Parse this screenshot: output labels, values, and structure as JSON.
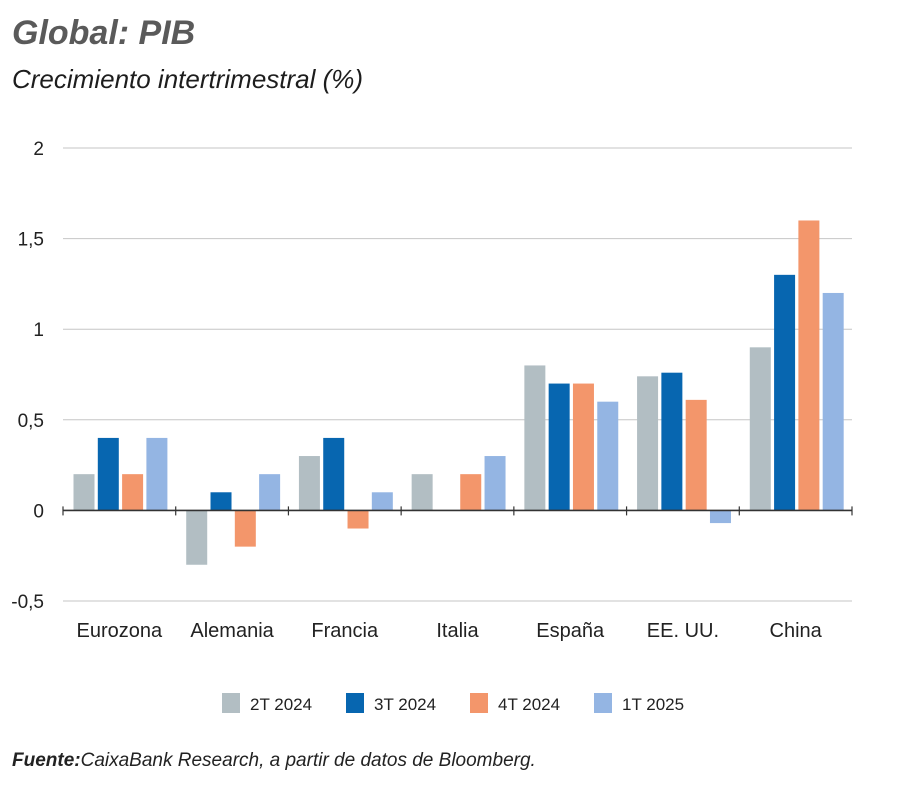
{
  "title": "Global: PIB",
  "subtitle": "Crecimiento intertrimestral (%)",
  "source_label": "Fuente:",
  "source_text": "CaixaBank Research, a partir de datos de Bloomberg.",
  "colors": {
    "2T 2024": "#b2bec3",
    "3T 2024": "#0766b0",
    "4T 2024": "#f3966b",
    "1T 2025": "#94b5e3",
    "grid": "#c6c6c6",
    "axis": "#333333"
  },
  "chart_data": {
    "type": "bar",
    "categories": [
      "Eurozona",
      "Alemania",
      "Francia",
      "Italia",
      "España",
      "EE. UU.",
      "China"
    ],
    "series": [
      {
        "name": "2T 2024",
        "values": [
          0.2,
          -0.3,
          0.3,
          0.2,
          0.8,
          0.74,
          0.9
        ]
      },
      {
        "name": "3T 2024",
        "values": [
          0.4,
          0.1,
          0.4,
          0.0,
          0.7,
          0.76,
          1.3
        ]
      },
      {
        "name": "4T 2024",
        "values": [
          0.2,
          -0.2,
          -0.1,
          0.2,
          0.7,
          0.61,
          1.6
        ]
      },
      {
        "name": "1T 2025",
        "values": [
          0.4,
          0.2,
          0.1,
          0.3,
          0.6,
          -0.07,
          1.2
        ]
      }
    ],
    "yticks": [
      2,
      1.5,
      1,
      0.5,
      0,
      -0.5
    ],
    "ytick_labels": [
      "2",
      "1,5",
      "1",
      "0,5",
      "0",
      "-0,5"
    ],
    "ylim": [
      -0.5,
      2
    ],
    "grid": true,
    "legend_position": "bottom"
  }
}
